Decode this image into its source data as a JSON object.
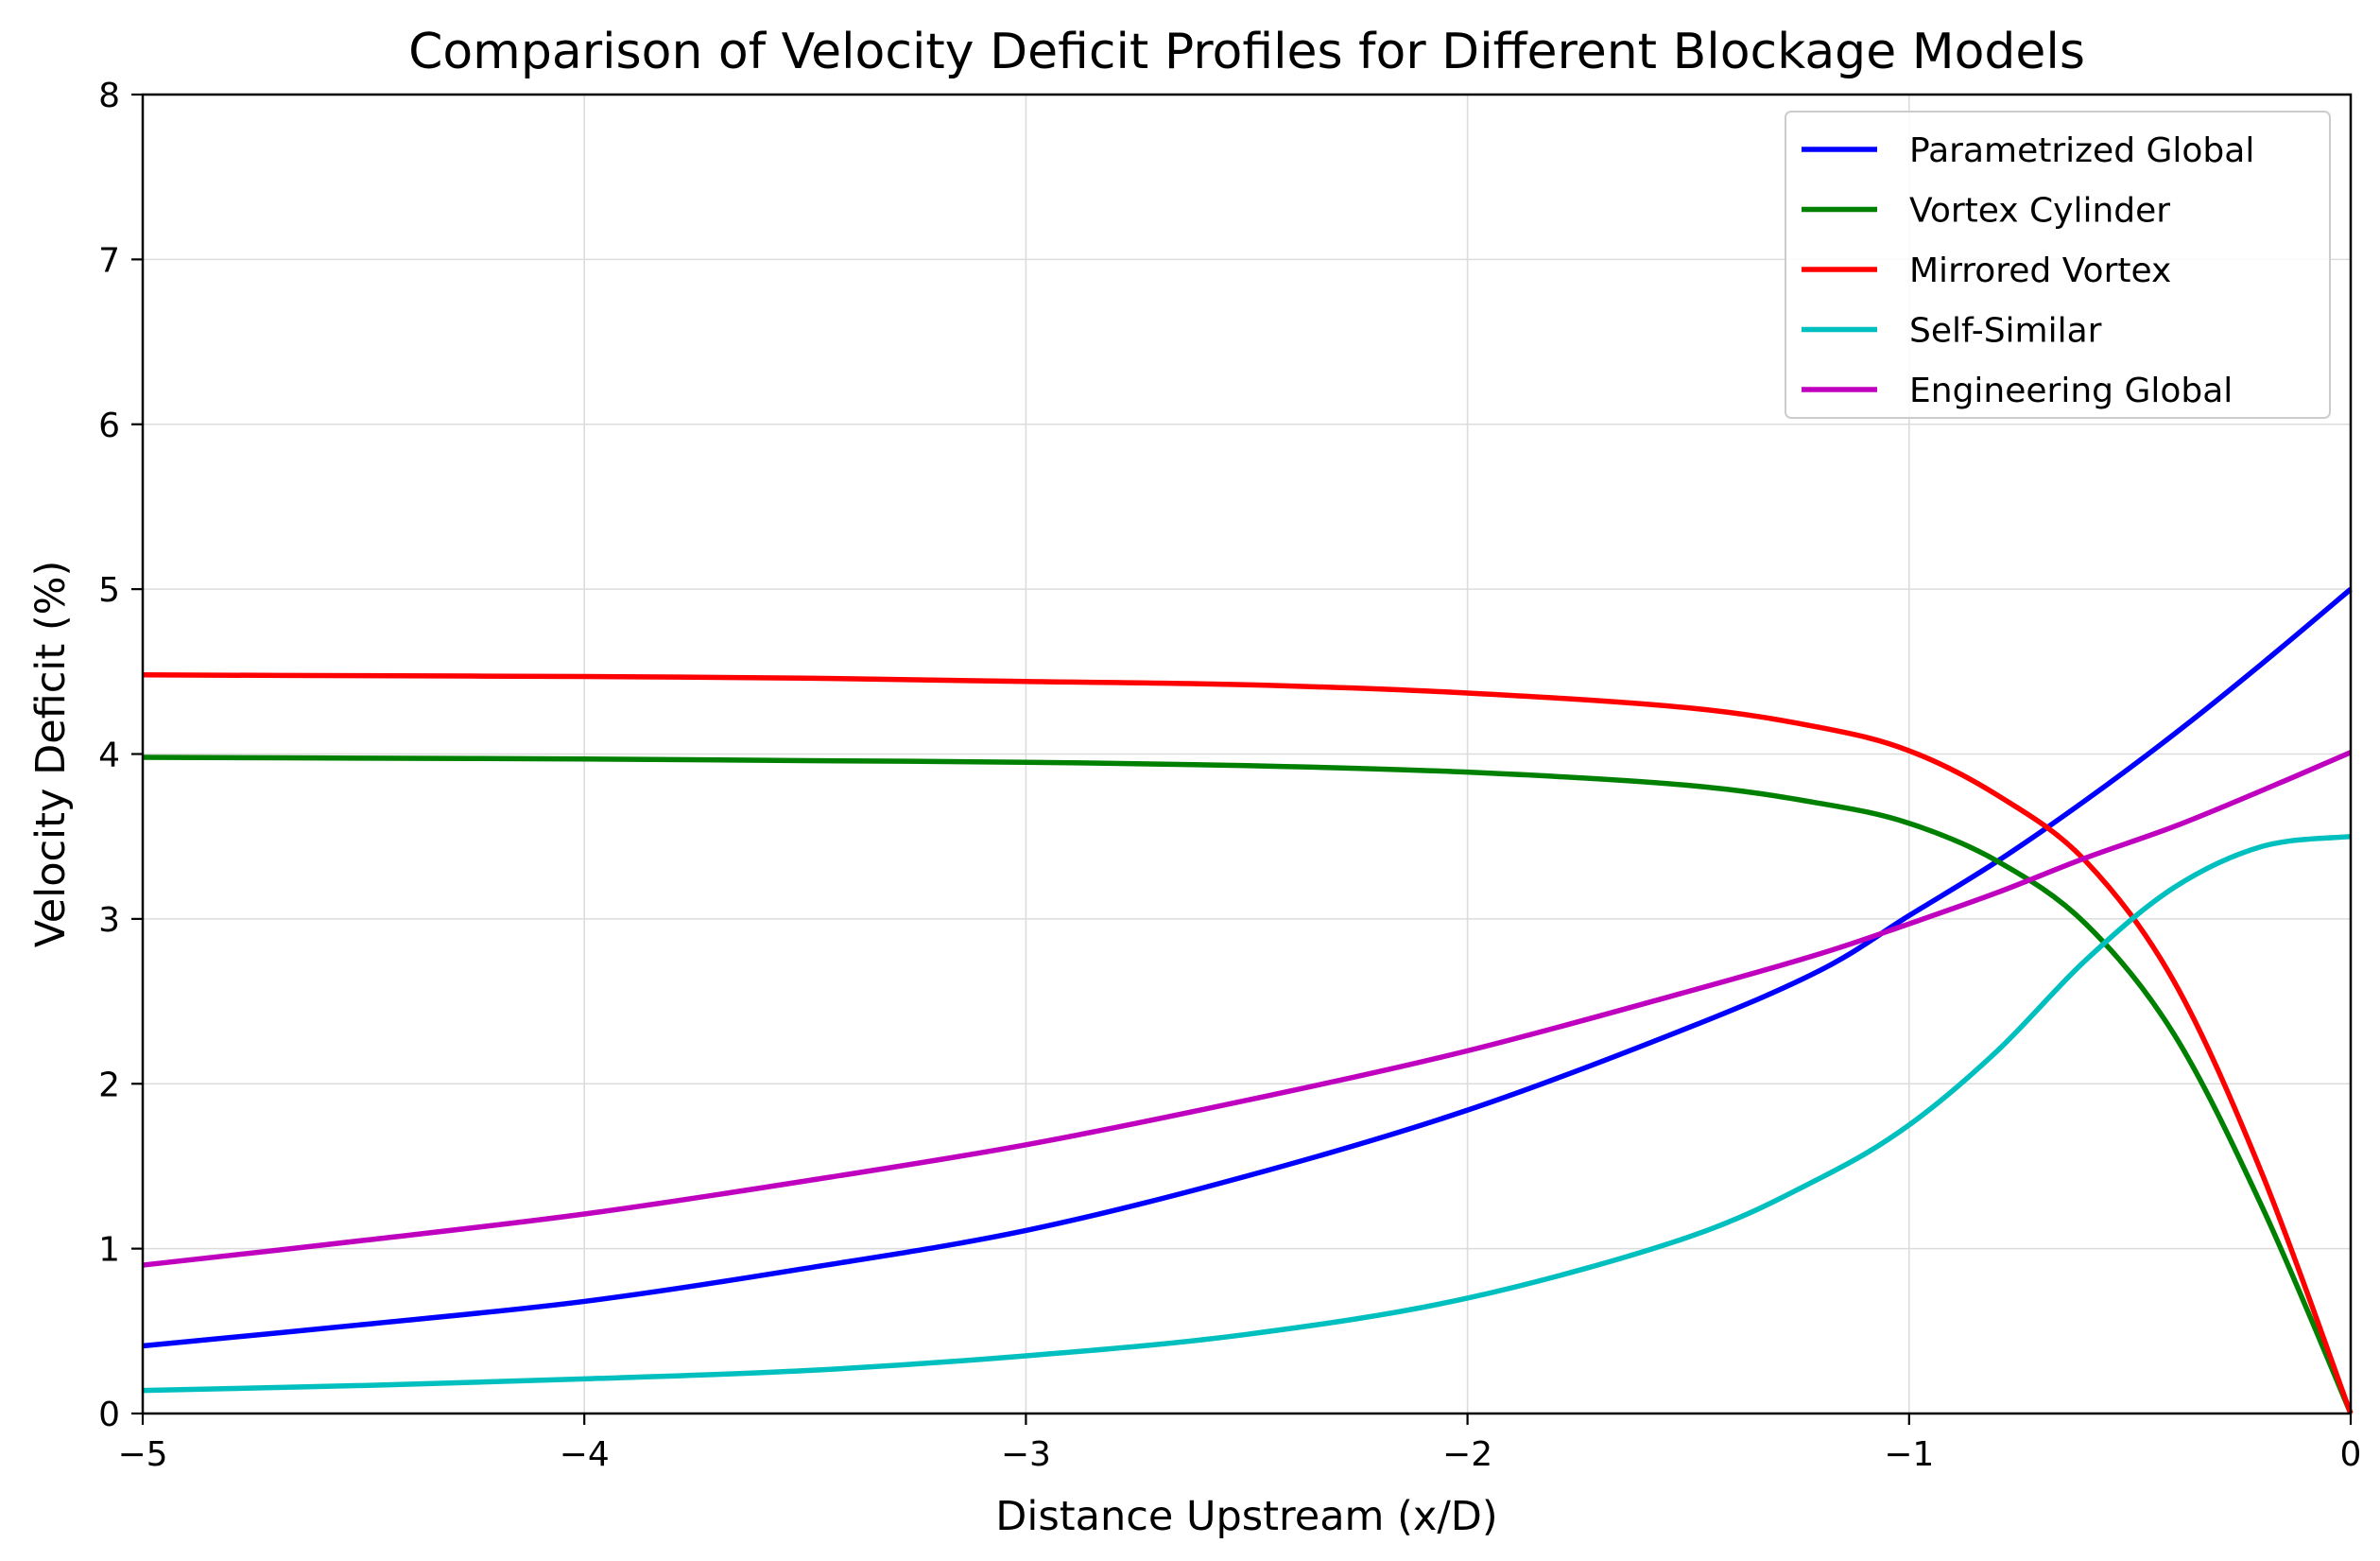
{
  "chart_data": {
    "type": "line",
    "title": "Comparison of Velocity Deficit Profiles for Different Blockage Models",
    "xlabel": "Distance Upstream (x/D)",
    "ylabel": "Velocity Deficit (%)",
    "xlim": [
      -5,
      0
    ],
    "ylim": [
      0,
      8
    ],
    "x_ticks": [
      -5,
      -4,
      -3,
      -2,
      -1,
      0
    ],
    "x_tick_labels": [
      "−5",
      "−4",
      "−3",
      "−2",
      "−1",
      "0"
    ],
    "y_ticks": [
      0,
      1,
      2,
      3,
      4,
      5,
      6,
      7,
      8
    ],
    "y_tick_labels": [
      "0",
      "1",
      "2",
      "3",
      "4",
      "5",
      "6",
      "7",
      "8"
    ],
    "grid": true,
    "legend_position": "top-right",
    "x": [
      -5,
      -4.5,
      -4,
      -3.5,
      -3,
      -2.5,
      -2,
      -1.5,
      -1.2,
      -1,
      -0.8,
      -0.6,
      -0.4,
      -0.2,
      0
    ],
    "series": [
      {
        "name": "Parametrized Global",
        "color": "#0000ff",
        "values": [
          0.41,
          0.54,
          0.68,
          0.88,
          1.11,
          1.44,
          1.84,
          2.34,
          2.69,
          3.02,
          3.35,
          3.72,
          4.12,
          4.55,
          5.0
        ]
      },
      {
        "name": "Vortex Cylinder",
        "color": "#008000",
        "values": [
          3.98,
          3.975,
          3.97,
          3.96,
          3.95,
          3.93,
          3.89,
          3.81,
          3.7,
          3.58,
          3.35,
          2.97,
          2.3,
          1.25,
          0.0
        ]
      },
      {
        "name": "Mirrored Vortex",
        "color": "#ff0000",
        "values": [
          4.48,
          4.475,
          4.47,
          4.46,
          4.44,
          4.42,
          4.37,
          4.28,
          4.16,
          4.02,
          3.75,
          3.35,
          2.62,
          1.45,
          0.0
        ]
      },
      {
        "name": "Self-Similar",
        "color": "#00bfbf",
        "values": [
          0.14,
          0.17,
          0.21,
          0.26,
          0.35,
          0.48,
          0.7,
          1.07,
          1.43,
          1.75,
          2.2,
          2.75,
          3.19,
          3.44,
          3.5
        ]
      },
      {
        "name": "Engineering Global",
        "color": "#bf00bf",
        "values": [
          0.9,
          1.05,
          1.21,
          1.41,
          1.63,
          1.9,
          2.2,
          2.56,
          2.79,
          2.97,
          3.16,
          3.37,
          3.56,
          3.78,
          4.01
        ]
      }
    ]
  }
}
